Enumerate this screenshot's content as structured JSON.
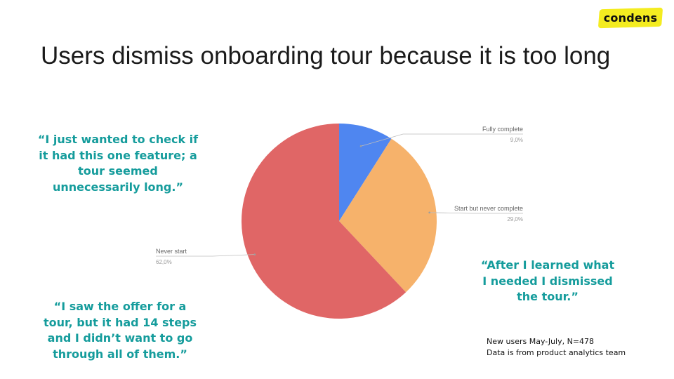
{
  "brand": {
    "logo_text": "condens"
  },
  "title": "Users dismiss onboarding tour because it is too long",
  "quotes": [
    "“I just wanted to check if it had this one feature; a tour seemed unnecessarily long.”",
    "“I saw the offer for a tour, but it had 14 steps and I didn’t want to go through all of them.”",
    "“After I learned what I needed I dismissed the tour.”"
  ],
  "note": {
    "line1": "New users May-July, N=478",
    "line2": "Data is from product analytics team"
  },
  "colors": {
    "quote": "#159c9c",
    "logo_highlight": "#f4ec20"
  },
  "chart_data": {
    "type": "pie",
    "title": "",
    "slices": [
      {
        "label": "Fully complete",
        "value": 9.0,
        "display": "9,0%",
        "color": "#4f86f0"
      },
      {
        "label": "Start but never complete",
        "value": 29.0,
        "display": "29,0%",
        "color": "#f6b26b"
      },
      {
        "label": "Never start",
        "value": 62.0,
        "display": "62,0%",
        "color": "#e06666"
      }
    ],
    "start_angle_deg": 0,
    "direction": "clockwise",
    "legend": "callout labels beside slices"
  }
}
